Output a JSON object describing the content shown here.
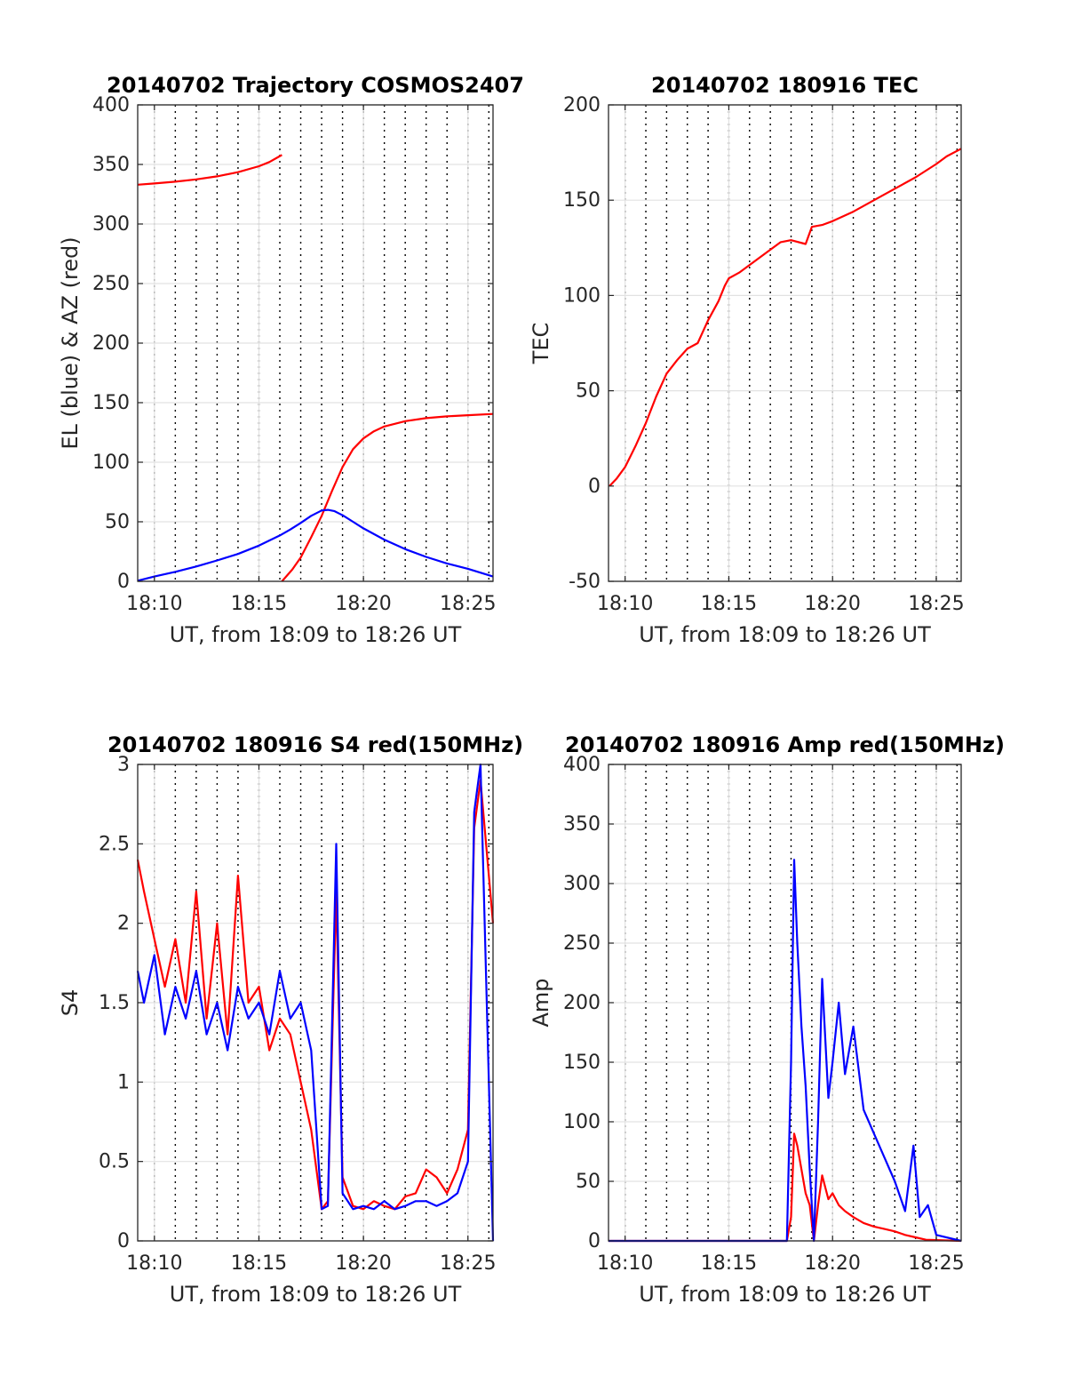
{
  "chart_data": [
    {
      "type": "line",
      "title": "20140702 Trajectory COSMOS2407",
      "xlabel": "UT, from 18:09 to 18:26 UT",
      "ylabel": "EL (blue) & AZ (red)",
      "xlim": [
        9.2,
        26.2
      ],
      "ylim": [
        0,
        400
      ],
      "x_ticks": [
        "18:10",
        "18:15",
        "18:20",
        "18:25"
      ],
      "y_ticks": [
        "0",
        "50",
        "100",
        "150",
        "200",
        "250",
        "300",
        "350",
        "400"
      ],
      "grid": true,
      "series": [
        {
          "color": "#ff0000",
          "x": [
            9.2,
            10,
            11,
            12,
            13,
            14,
            15,
            15.5,
            15.9,
            16.1
          ],
          "y": [
            333,
            334,
            335.5,
            337.5,
            340,
            343.5,
            348.5,
            352,
            356,
            358
          ]
        },
        {
          "color": "#ff0000",
          "x": [
            16.1,
            16.6,
            17,
            17.5,
            18,
            18.5,
            19,
            19.5,
            20,
            20.5,
            21,
            22,
            23,
            24,
            25,
            26.2
          ],
          "y": [
            0,
            10,
            20,
            37,
            55,
            76,
            96,
            111,
            120,
            126,
            130,
            134.5,
            137,
            138.5,
            139.5,
            140.5
          ]
        },
        {
          "color": "#0000ff",
          "x": [
            9.2,
            10,
            11,
            12,
            13,
            14,
            15,
            16,
            16.5,
            17,
            17.5,
            18,
            18.3,
            18.6,
            19,
            19.5,
            20,
            21,
            22,
            23,
            24,
            25,
            26.2
          ],
          "y": [
            0.5,
            4,
            8,
            12.5,
            17.5,
            23,
            30,
            38.5,
            43.5,
            49,
            55,
            59.5,
            60,
            59,
            55.5,
            50,
            44.5,
            35,
            27,
            20.5,
            15,
            10.5,
            4
          ]
        }
      ]
    },
    {
      "type": "line",
      "title": "20140702 180916 TEC",
      "xlabel": "UT, from 18:09 to 18:26 UT",
      "ylabel": "TEC",
      "xlim": [
        9.2,
        26.2
      ],
      "ylim": [
        -50,
        200
      ],
      "x_ticks": [
        "18:10",
        "18:15",
        "18:20",
        "18:25"
      ],
      "y_ticks": [
        "-50",
        "0",
        "50",
        "100",
        "150",
        "200"
      ],
      "grid": true,
      "series": [
        {
          "color": "#ff0000",
          "x": [
            9.25,
            9.6,
            10,
            10.5,
            11,
            11.5,
            12,
            12.5,
            13,
            13.5,
            14,
            14.5,
            14.8,
            15,
            15.5,
            16,
            16.5,
            17,
            17.5,
            18,
            18.7,
            19,
            19.5,
            20,
            21,
            22,
            23,
            24,
            25,
            25.5,
            26.2
          ],
          "y": [
            0,
            4,
            10,
            21,
            33,
            47,
            59,
            66,
            72,
            75,
            87,
            97,
            105,
            109,
            112,
            116,
            120,
            124,
            128,
            129,
            127,
            136,
            137,
            139,
            144,
            150,
            156,
            162,
            169,
            173,
            177
          ]
        }
      ]
    },
    {
      "type": "line",
      "title": "20140702 180916 S4 red(150MHz)",
      "xlabel": "UT, from 18:09 to 18:26 UT",
      "ylabel": "S4",
      "xlim": [
        9.2,
        26.2
      ],
      "ylim": [
        0,
        3
      ],
      "x_ticks": [
        "18:10",
        "18:15",
        "18:20",
        "18:25"
      ],
      "y_ticks": [
        "0",
        "0.5",
        "1",
        "1.5",
        "2",
        "2.5",
        "3"
      ],
      "grid": true,
      "series": [
        {
          "color": "#ff0000",
          "x": [
            9.2,
            9.5,
            10,
            10.5,
            11,
            11.5,
            12,
            12.5,
            13,
            13.5,
            14,
            14.5,
            15,
            15.5,
            16,
            16.5,
            17,
            17.5,
            18,
            18.3,
            18.7,
            19,
            19.5,
            20,
            20.5,
            21,
            21.5,
            22,
            22.5,
            23,
            23.5,
            24,
            24.5,
            25,
            25.3,
            25.6,
            26.2
          ],
          "y": [
            2.4,
            2.2,
            1.9,
            1.6,
            1.9,
            1.5,
            2.2,
            1.4,
            2.0,
            1.3,
            2.3,
            1.5,
            1.6,
            1.2,
            1.4,
            1.3,
            1.0,
            0.7,
            0.2,
            0.25,
            2.2,
            0.4,
            0.22,
            0.2,
            0.25,
            0.22,
            0.2,
            0.28,
            0.3,
            0.45,
            0.4,
            0.3,
            0.45,
            0.7,
            2.6,
            2.9,
            2.0
          ]
        },
        {
          "color": "#0000ff",
          "x": [
            9.2,
            9.5,
            10,
            10.5,
            11,
            11.5,
            12,
            12.5,
            13,
            13.5,
            14,
            14.5,
            15,
            15.5,
            16,
            16.5,
            17,
            17.5,
            18,
            18.3,
            18.7,
            19,
            19.5,
            20,
            20.5,
            21,
            21.5,
            22,
            22.5,
            23,
            23.5,
            24,
            24.5,
            25,
            25.3,
            25.6,
            26.2
          ],
          "y": [
            1.7,
            1.5,
            1.8,
            1.3,
            1.6,
            1.4,
            1.7,
            1.3,
            1.5,
            1.2,
            1.6,
            1.4,
            1.5,
            1.3,
            1.7,
            1.4,
            1.5,
            1.2,
            0.2,
            0.22,
            2.5,
            0.3,
            0.2,
            0.22,
            0.2,
            0.25,
            0.2,
            0.22,
            0.25,
            0.25,
            0.22,
            0.25,
            0.3,
            0.5,
            2.7,
            3.0,
            0.0
          ]
        }
      ]
    },
    {
      "type": "line",
      "title": "20140702 180916 Amp red(150MHz)",
      "xlabel": "UT, from 18:09 to 18:26 UT",
      "ylabel": "Amp",
      "xlim": [
        9.2,
        26.2
      ],
      "ylim": [
        0,
        400
      ],
      "x_ticks": [
        "18:10",
        "18:15",
        "18:20",
        "18:25"
      ],
      "y_ticks": [
        "0",
        "50",
        "100",
        "150",
        "200",
        "250",
        "300",
        "350",
        "400"
      ],
      "grid": true,
      "series": [
        {
          "color": "#ff0000",
          "x": [
            9.2,
            17.8,
            18.0,
            18.15,
            18.3,
            18.5,
            18.7,
            18.9,
            19.1,
            19.3,
            19.5,
            19.8,
            20.0,
            20.3,
            20.6,
            21,
            21.5,
            22,
            22.5,
            23,
            23.5,
            24,
            24.5,
            26.2
          ],
          "y": [
            0,
            0,
            20,
            90,
            80,
            60,
            40,
            30,
            0,
            30,
            55,
            35,
            40,
            30,
            25,
            20,
            15,
            12,
            10,
            8,
            5,
            3,
            1,
            0
          ]
        },
        {
          "color": "#0000ff",
          "x": [
            9.2,
            17.8,
            18.0,
            18.15,
            18.3,
            18.5,
            18.7,
            18.9,
            19.1,
            19.3,
            19.5,
            19.8,
            20.0,
            20.3,
            20.6,
            21,
            21.5,
            22,
            22.5,
            23,
            23.5,
            23.9,
            24.2,
            24.6,
            25,
            26.2
          ],
          "y": [
            0,
            0,
            150,
            320,
            250,
            180,
            130,
            60,
            0,
            100,
            220,
            120,
            150,
            200,
            140,
            180,
            110,
            90,
            70,
            50,
            25,
            80,
            20,
            30,
            5,
            0
          ]
        }
      ]
    }
  ]
}
